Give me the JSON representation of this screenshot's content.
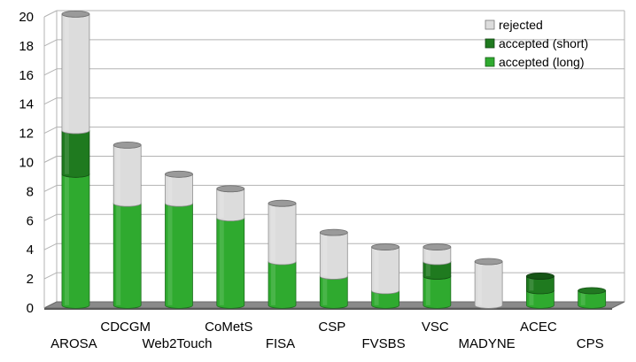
{
  "chart_data": {
    "type": "bar",
    "stacked": true,
    "style": "3d-cylinder",
    "categories": [
      "AROSA",
      "CDCGM",
      "Web2Touch",
      "CoMetS",
      "FISA",
      "CSP",
      "FVSBS",
      "VSC",
      "MADYNE",
      "ACEC",
      "CPS"
    ],
    "series": [
      {
        "name": "accepted (long)",
        "color": "#2faa2f",
        "values": [
          9,
          7,
          7,
          6,
          3,
          2,
          1,
          2,
          0,
          1,
          1
        ]
      },
      {
        "name": "accepted (short)",
        "color": "#1f7a1f",
        "values": [
          3,
          0,
          0,
          0,
          0,
          0,
          0,
          1,
          0,
          1,
          0
        ]
      },
      {
        "name": "rejected",
        "color": "#dcdcdc",
        "values": [
          8,
          4,
          2,
          2,
          4,
          3,
          3,
          1,
          3,
          0,
          0
        ]
      }
    ],
    "ylim": [
      0,
      20
    ],
    "yticks": [
      "0",
      "2",
      "4",
      "6",
      "8",
      "10",
      "12",
      "14",
      "16",
      "18",
      "20"
    ],
    "grid": true,
    "legend_position": "top-right",
    "legend_order": [
      "rejected",
      "accepted (short)",
      "accepted (long)"
    ],
    "title": "",
    "xlabel": "",
    "ylabel": ""
  }
}
